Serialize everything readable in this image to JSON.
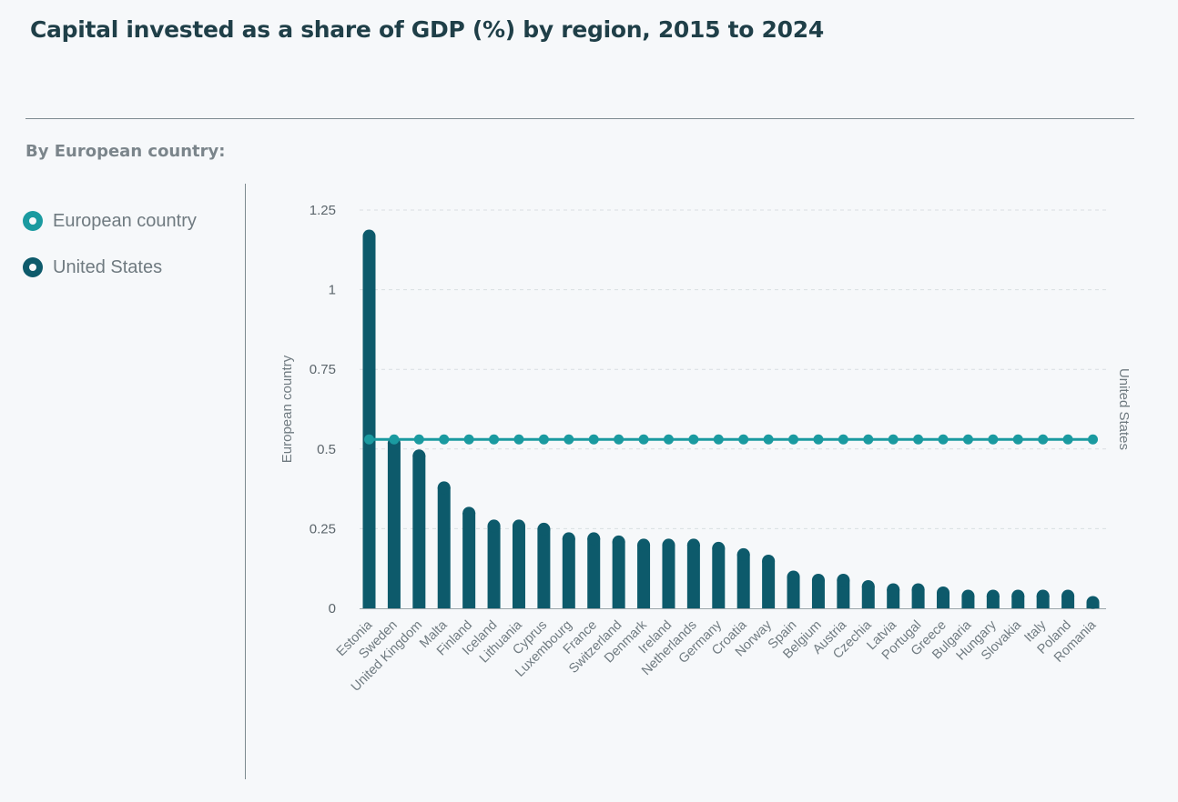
{
  "title": "Capital invested as a share of GDP (%) by region, 2015 to 2024",
  "subtitle": "By European country:",
  "legend": [
    {
      "label": "European country",
      "color": "#1a9aa0",
      "icon": "circle-marker-icon"
    },
    {
      "label": "United States",
      "color": "#0d5a6b",
      "icon": "circle-marker-icon"
    }
  ],
  "colors": {
    "bars": "#0d5a6b",
    "line": "#1a9aa0",
    "grid": "#d9dee1"
  },
  "chart_data": {
    "type": "bar",
    "ylabel_left": "European country",
    "ylabel_right": "United States",
    "ylim": [
      0,
      1.25
    ],
    "yticks": [
      "0",
      "0.25",
      "0.5",
      "0.75",
      "1",
      "1.25"
    ],
    "grid": true,
    "categories": [
      "Estonia",
      "Sweden",
      "United Kingdom",
      "Malta",
      "Finland",
      "Iceland",
      "Lithuania",
      "Cyprus",
      "Luxembourg",
      "France",
      "Switzerland",
      "Denmark",
      "Ireland",
      "Netherlands",
      "Germany",
      "Croatia",
      "Norway",
      "Spain",
      "Belgium",
      "Austria",
      "Czechia",
      "Latvia",
      "Portugal",
      "Greece",
      "Bulgaria",
      "Hungary",
      "Slovakia",
      "Italy",
      "Poland",
      "Romania"
    ],
    "series": [
      {
        "name": "European country",
        "type": "bar",
        "values": [
          1.17,
          0.52,
          0.48,
          0.38,
          0.3,
          0.26,
          0.26,
          0.25,
          0.22,
          0.22,
          0.21,
          0.2,
          0.2,
          0.2,
          0.19,
          0.17,
          0.15,
          0.1,
          0.09,
          0.09,
          0.07,
          0.06,
          0.06,
          0.05,
          0.04,
          0.04,
          0.04,
          0.04,
          0.04,
          0.02
        ]
      },
      {
        "name": "United States",
        "type": "line",
        "value": 0.53
      }
    ]
  }
}
